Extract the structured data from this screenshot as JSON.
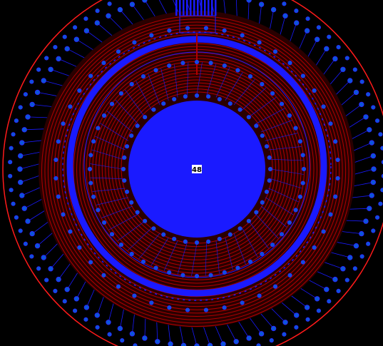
{
  "board": {
    "net_label": "48",
    "colors": {
      "background": "#000000",
      "top_copper": "#b00000",
      "bottom_copper": "#1a1aff",
      "outline": "#ff1a1a",
      "via_fill": "#0a58d8",
      "via_ring": "#2a2aff",
      "label_bg": "#ffffff",
      "label_text": "#000000"
    },
    "layers": {
      "outer_via_ring_count": 84,
      "inner_via_ring_count": 48,
      "center_via_ring_count": 40,
      "spiral_turns": 26
    }
  }
}
